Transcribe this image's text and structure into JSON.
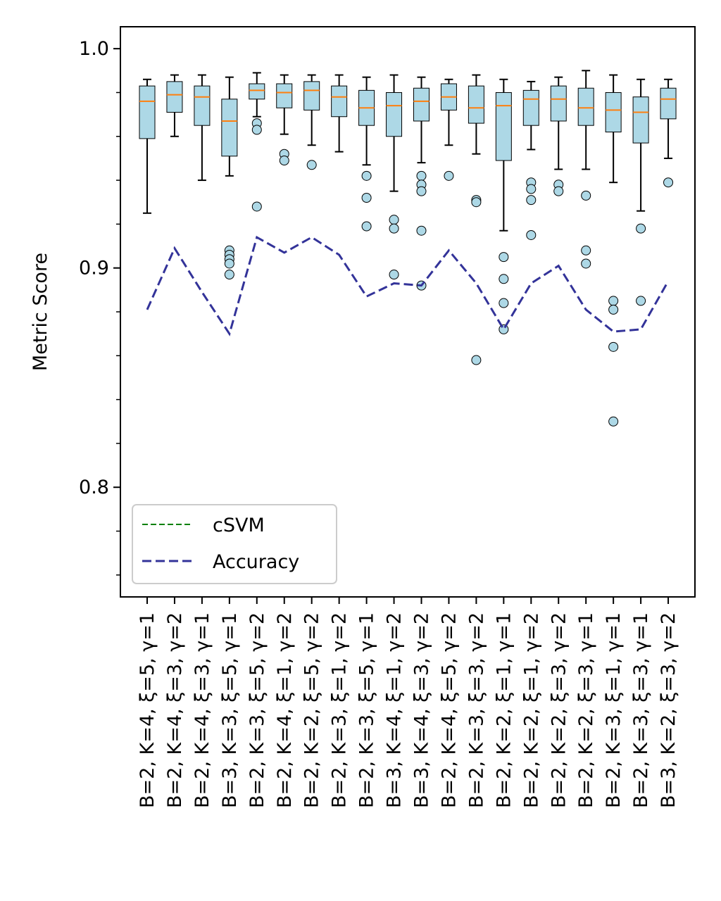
{
  "chart_data": {
    "type": "box",
    "title": "",
    "xlabel": "",
    "ylabel": "Metric Score",
    "ylim": [
      0.75,
      1.01
    ],
    "yticks": [
      0.8,
      0.9,
      1.0
    ],
    "ytick_labels": [
      "0.8",
      "0.9",
      "1.0"
    ],
    "minor_yticks": [
      0.76,
      0.78,
      0.82,
      0.84,
      0.86,
      0.88,
      0.92,
      0.94,
      0.96,
      0.98
    ],
    "categories": [
      "B=2, K=4, ξ=5, γ=1",
      "B=2, K=4, ξ=3, γ=2",
      "B=2, K=4, ξ=3, γ=1",
      "B=3, K=3, ξ=5, γ=1",
      "B=2, K=3, ξ=5, γ=2",
      "B=2, K=4, ξ=1, γ=2",
      "B=2, K=2, ξ=5, γ=2",
      "B=2, K=3, ξ=1, γ=2",
      "B=2, K=3, ξ=5, γ=1",
      "B=3, K=4, ξ=1, γ=2",
      "B=3, K=4, ξ=3, γ=2",
      "B=2, K=4, ξ=5, γ=2",
      "B=2, K=3, ξ=3, γ=2",
      "B=2, K=2, ξ=1, γ=1",
      "B=2, K=2, ξ=1, γ=2",
      "B=2, K=2, ξ=3, γ=2",
      "B=2, K=2, ξ=3, γ=1",
      "B=2, K=3, ξ=1, γ=1",
      "B=2, K=3, ξ=3, γ=1",
      "B=3, K=2, ξ=3, γ=2"
    ],
    "boxes": [
      {
        "whisker_low": 0.925,
        "q1": 0.959,
        "median": 0.976,
        "q3": 0.983,
        "whisker_high": 0.986,
        "outliers": []
      },
      {
        "whisker_low": 0.96,
        "q1": 0.971,
        "median": 0.979,
        "q3": 0.985,
        "whisker_high": 0.988,
        "outliers": []
      },
      {
        "whisker_low": 0.94,
        "q1": 0.965,
        "median": 0.978,
        "q3": 0.983,
        "whisker_high": 0.988,
        "outliers": []
      },
      {
        "whisker_low": 0.942,
        "q1": 0.951,
        "median": 0.967,
        "q3": 0.977,
        "whisker_high": 0.987,
        "outliers": [
          0.908,
          0.906,
          0.904,
          0.902,
          0.897
        ]
      },
      {
        "whisker_low": 0.969,
        "q1": 0.977,
        "median": 0.981,
        "q3": 0.984,
        "whisker_high": 0.989,
        "outliers": [
          0.966,
          0.963,
          0.928
        ]
      },
      {
        "whisker_low": 0.961,
        "q1": 0.973,
        "median": 0.98,
        "q3": 0.984,
        "whisker_high": 0.988,
        "outliers": [
          0.952,
          0.949
        ]
      },
      {
        "whisker_low": 0.956,
        "q1": 0.972,
        "median": 0.981,
        "q3": 0.985,
        "whisker_high": 0.988,
        "outliers": [
          0.947
        ]
      },
      {
        "whisker_low": 0.953,
        "q1": 0.969,
        "median": 0.978,
        "q3": 0.983,
        "whisker_high": 0.988,
        "outliers": []
      },
      {
        "whisker_low": 0.947,
        "q1": 0.965,
        "median": 0.973,
        "q3": 0.981,
        "whisker_high": 0.987,
        "outliers": [
          0.942,
          0.932,
          0.919
        ]
      },
      {
        "whisker_low": 0.935,
        "q1": 0.96,
        "median": 0.974,
        "q3": 0.98,
        "whisker_high": 0.988,
        "outliers": [
          0.922,
          0.918,
          0.897
        ]
      },
      {
        "whisker_low": 0.948,
        "q1": 0.967,
        "median": 0.976,
        "q3": 0.982,
        "whisker_high": 0.987,
        "outliers": [
          0.942,
          0.938,
          0.935,
          0.917,
          0.892
        ]
      },
      {
        "whisker_low": 0.956,
        "q1": 0.972,
        "median": 0.978,
        "q3": 0.984,
        "whisker_high": 0.986,
        "outliers": [
          0.942
        ]
      },
      {
        "whisker_low": 0.952,
        "q1": 0.966,
        "median": 0.973,
        "q3": 0.983,
        "whisker_high": 0.988,
        "outliers": [
          0.931,
          0.93,
          0.858
        ]
      },
      {
        "whisker_low": 0.917,
        "q1": 0.949,
        "median": 0.974,
        "q3": 0.98,
        "whisker_high": 0.986,
        "outliers": [
          0.905,
          0.895,
          0.884,
          0.872
        ]
      },
      {
        "whisker_low": 0.954,
        "q1": 0.965,
        "median": 0.977,
        "q3": 0.981,
        "whisker_high": 0.985,
        "outliers": [
          0.939,
          0.936,
          0.931,
          0.915
        ]
      },
      {
        "whisker_low": 0.945,
        "q1": 0.967,
        "median": 0.977,
        "q3": 0.983,
        "whisker_high": 0.987,
        "outliers": [
          0.938,
          0.935
        ]
      },
      {
        "whisker_low": 0.945,
        "q1": 0.965,
        "median": 0.973,
        "q3": 0.982,
        "whisker_high": 0.99,
        "outliers": [
          0.933,
          0.908,
          0.902
        ]
      },
      {
        "whisker_low": 0.939,
        "q1": 0.962,
        "median": 0.972,
        "q3": 0.98,
        "whisker_high": 0.988,
        "outliers": [
          0.885,
          0.881,
          0.864,
          0.83
        ]
      },
      {
        "whisker_low": 0.926,
        "q1": 0.957,
        "median": 0.971,
        "q3": 0.978,
        "whisker_high": 0.986,
        "outliers": [
          0.918,
          0.885
        ]
      },
      {
        "whisker_low": 0.95,
        "q1": 0.968,
        "median": 0.977,
        "q3": 0.982,
        "whisker_high": 0.986,
        "outliers": [
          0.939
        ]
      }
    ],
    "series": [
      {
        "name": "cSVM",
        "style": "dashed",
        "color": "#008000",
        "values": []
      },
      {
        "name": "Accuracy",
        "style": "dashed",
        "color": "#333399",
        "values": [
          0.881,
          0.909,
          0.889,
          0.87,
          0.914,
          0.907,
          0.914,
          0.906,
          0.887,
          0.893,
          0.892,
          0.908,
          0.893,
          0.872,
          0.893,
          0.901,
          0.881,
          0.871,
          0.872,
          0.894
        ]
      }
    ],
    "legend_position": "lower-left",
    "grid": false,
    "colors": {
      "box_fill": "#add8e6",
      "box_edge": "#000000",
      "median": "#ff7f0e",
      "outlier_fill": "#add8e6"
    }
  }
}
